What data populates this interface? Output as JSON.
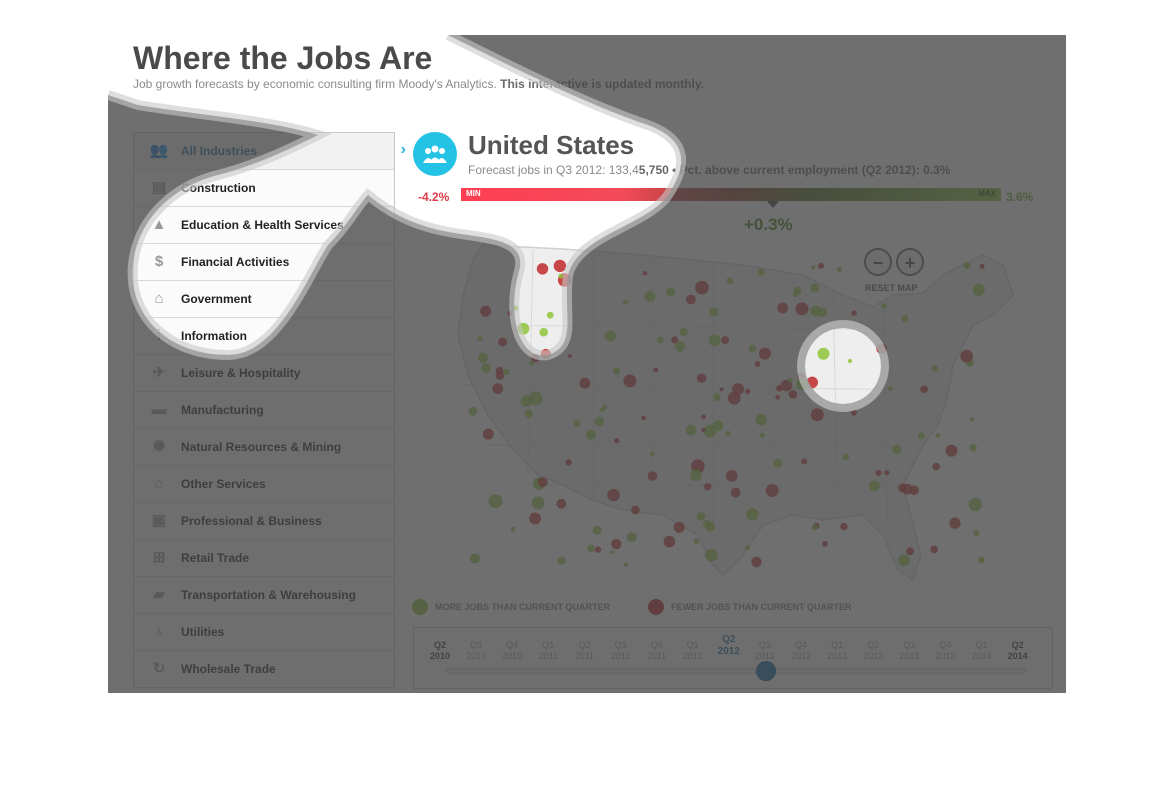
{
  "header": {
    "title": "Where the Jobs Are",
    "subtitle_prefix": "Job growth forecasts by economic consulting firm Moody's Analytics.",
    "subtitle_bold": "This interactive is updated monthly."
  },
  "sidebar": {
    "items": [
      {
        "label": "All Industries",
        "icon": "people-icon",
        "active": true
      },
      {
        "label": "Construction",
        "icon": "barrier-icon"
      },
      {
        "label": "Education & Health Services",
        "icon": "graduation-icon"
      },
      {
        "label": "Financial Activities",
        "icon": "money-icon"
      },
      {
        "label": "Government",
        "icon": "capitol-icon"
      },
      {
        "label": "Information",
        "icon": "info-icon"
      },
      {
        "label": "Leisure & Hospitality",
        "icon": "plane-icon"
      },
      {
        "label": "Manufacturing",
        "icon": "car-icon"
      },
      {
        "label": "Natural Resources & Mining",
        "icon": "mining-icon"
      },
      {
        "label": "Other Services",
        "icon": "house-icon"
      },
      {
        "label": "Professional & Business",
        "icon": "briefcase-icon"
      },
      {
        "label": "Retail Trade",
        "icon": "cart-icon"
      },
      {
        "label": "Transportation & Warehousing",
        "icon": "truck-icon"
      },
      {
        "label": "Utilities",
        "icon": "lightbulb-icon"
      },
      {
        "label": "Wholesale Trade",
        "icon": "recycle-icon"
      }
    ],
    "chevron": "›"
  },
  "region": {
    "name": "United States",
    "stats_prefix": "Forecast jobs in Q3 2012: 133,4",
    "stats_bold": "5,750 • Pct. above current employment (Q2 2012): 0.3%"
  },
  "gauge": {
    "min_value": "-4.2%",
    "max_value": "3.6%",
    "min_label": "MIN",
    "max_label": "MAX",
    "current_value": "+0.3%",
    "current": 0.3,
    "min": -4.2,
    "max": 3.6
  },
  "map_controls": {
    "zoom_out": "−",
    "zoom_in": "+",
    "reset": "RESET MAP"
  },
  "legend": {
    "more": "MORE JOBS THAN CURRENT QUARTER",
    "fewer": "FEWER JOBS THAN CURRENT QUARTER",
    "more_color": "#8ec43a",
    "fewer_color": "#c0282a"
  },
  "timeline": {
    "ticks": [
      {
        "q": "Q2",
        "y": "2010"
      },
      {
        "q": "Q3",
        "y": "2010"
      },
      {
        "q": "Q4",
        "y": "2010"
      },
      {
        "q": "Q1",
        "y": "2011"
      },
      {
        "q": "Q2",
        "y": "2011"
      },
      {
        "q": "Q3",
        "y": "2011"
      },
      {
        "q": "Q4",
        "y": "2011"
      },
      {
        "q": "Q1",
        "y": "2012"
      },
      {
        "q": "Q2",
        "y": "2012"
      },
      {
        "q": "Q3",
        "y": "2012"
      },
      {
        "q": "Q4",
        "y": "2012"
      },
      {
        "q": "Q1",
        "y": "2013"
      },
      {
        "q": "Q2",
        "y": "2013"
      },
      {
        "q": "Q3",
        "y": "2013"
      },
      {
        "q": "Q4",
        "y": "2013"
      },
      {
        "q": "Q1",
        "y": "2014"
      },
      {
        "q": "Q2",
        "y": "2014"
      }
    ],
    "selected_index": 8,
    "handle_index": 9
  },
  "colors": {
    "accent": "#24c3e6",
    "active_text": "#1f6fa6",
    "slider": "#0a6aa8"
  }
}
